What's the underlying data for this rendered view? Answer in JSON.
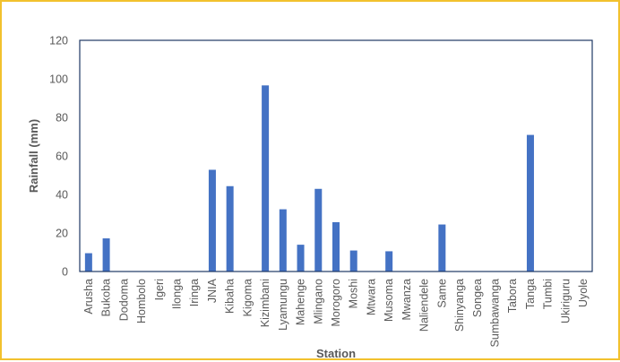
{
  "chart_data": {
    "type": "bar",
    "xlabel": "Station",
    "ylabel": "Rainfall (mm)",
    "ylim": [
      0,
      120
    ],
    "yticks": [
      0,
      20,
      40,
      60,
      80,
      100,
      120
    ],
    "grid": false,
    "legend": "none",
    "colors": {
      "bar": "#4472c4",
      "frame_border": "#f2c12e",
      "plot_border": "#1f3864",
      "text": "#595959"
    },
    "categories": [
      "Arusha",
      "Bukoba",
      "Dodoma",
      "Hombolo",
      "Igeri",
      "Ilonga",
      "Iringa",
      "JNIA",
      "Kibaha",
      "Kigoma",
      "Kizimbani",
      "Lyamungu",
      "Mahenge",
      "Mlingano",
      "Morogoro",
      "Moshi",
      "Mtwara",
      "Musoma",
      "Mwanza",
      "Naliendele",
      "Same",
      "Shinyanga",
      "Songea",
      "Sumbawanga",
      "Tabora",
      "Tanga",
      "Tumbi",
      "Ukiriguru",
      "Uyole"
    ],
    "values": [
      9.5,
      17.2,
      0,
      0,
      0,
      0,
      0,
      52.8,
      44.3,
      0,
      96.6,
      32.3,
      13.9,
      42.9,
      25.6,
      10.9,
      0,
      10.5,
      0,
      0,
      24.4,
      0,
      0,
      0,
      0,
      70.9,
      0,
      0,
      0
    ]
  }
}
